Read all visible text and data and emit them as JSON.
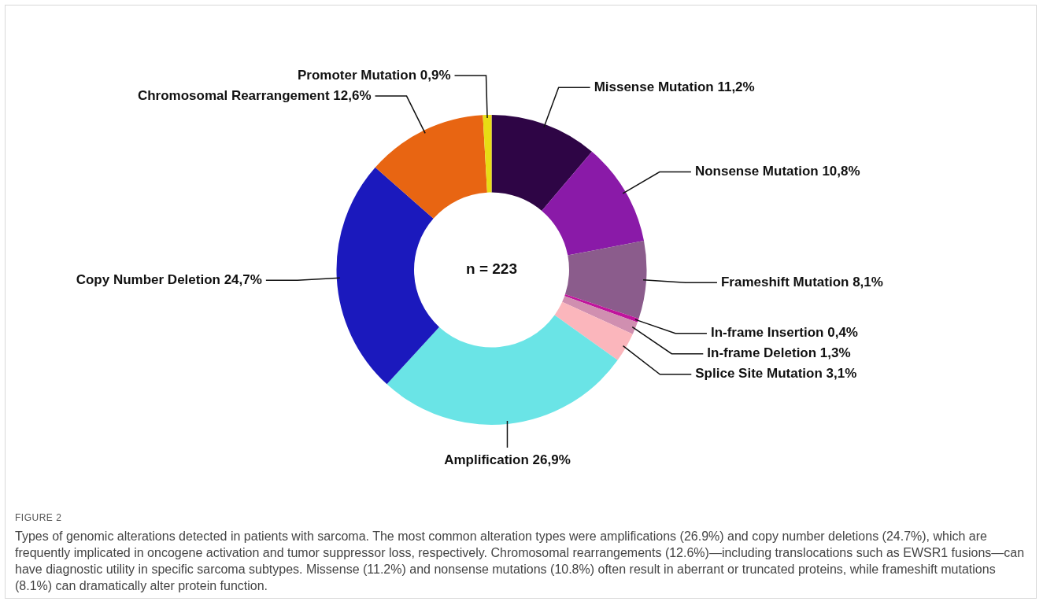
{
  "chart_data": {
    "type": "donut",
    "categories": [
      "Missense Mutation",
      "Nonsense Mutation",
      "Frameshift Mutation",
      "In-frame Insertion",
      "In-frame Deletion",
      "Splice Site Mutation",
      "Amplification",
      "Copy Number Deletion",
      "Chromosomal Rearrangement",
      "Promoter Mutation"
    ],
    "values": [
      11.2,
      10.8,
      8.1,
      0.4,
      1.3,
      3.1,
      26.9,
      24.7,
      12.6,
      0.9
    ],
    "value_labels": [
      "11,2%",
      "10,8%",
      "8,1%",
      "0,4%",
      "1,3%",
      "3,1%",
      "26,9%",
      "24,7%",
      "12,6%",
      "0,9%"
    ],
    "colors": [
      "#2e0545",
      "#8a1aa8",
      "#8b5c8c",
      "#c0149c",
      "#d08fb0",
      "#fbb6bc",
      "#6ae4e6",
      "#1b19bd",
      "#e86512",
      "#e8dc14"
    ],
    "legend": false,
    "annotations": [
      "n = 223",
      "FIGURE 2",
      "Types of genomic alterations detected in patients with sarcoma. The most common alteration types were amplifications (26.9%) and copy number deletions (24.7%), which are frequently implicated in oncogene activation and tumor suppressor loss, respectively. Chromosomal rearrangements (12.6%)—including translocations such as EWSR1 fusions—can have diagnostic utility in specific sarcoma subtypes. Missense (11.2%) and nonsense mutations (10.8%) often result in aberrant or truncated proteins, while frameshift mutations (8.1%) can dramatically alter protein function."
    ]
  }
}
